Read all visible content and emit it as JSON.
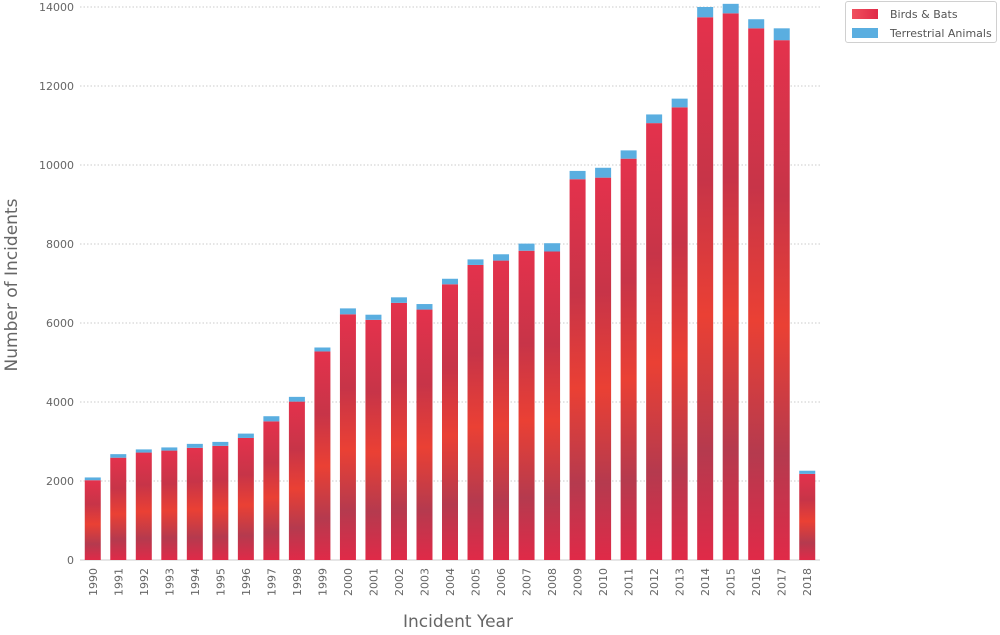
{
  "chart_data": {
    "type": "bar",
    "stacked": true,
    "xlabel": "Incident Year",
    "ylabel": "Number of Incidents",
    "ylim": [
      0,
      14000
    ],
    "yticks": [
      0,
      2000,
      4000,
      6000,
      8000,
      10000,
      12000,
      14000
    ],
    "grid": true,
    "legend_position": "top-right",
    "categories": [
      "1990",
      "1991",
      "1992",
      "1993",
      "1994",
      "1995",
      "1996",
      "1997",
      "1998",
      "1999",
      "2000",
      "2001",
      "2002",
      "2003",
      "2004",
      "2005",
      "2006",
      "2007",
      "2008",
      "2009",
      "2010",
      "2011",
      "2012",
      "2013",
      "2014",
      "2015",
      "2016",
      "2017",
      "2018"
    ],
    "series": [
      {
        "name": "Birds & Bats",
        "color": "#e8304a",
        "values": [
          2020,
          2590,
          2720,
          2770,
          2840,
          2890,
          3090,
          3510,
          4010,
          5280,
          6220,
          6080,
          6510,
          6340,
          6980,
          7470,
          7580,
          7830,
          7810,
          9640,
          9680,
          10160,
          11060,
          11460,
          13740,
          13840,
          13460,
          13160,
          2180
        ]
      },
      {
        "name": "Terrestrial Animals",
        "color": "#5aaee0",
        "values": [
          70,
          90,
          80,
          80,
          100,
          100,
          110,
          130,
          120,
          100,
          150,
          130,
          140,
          140,
          140,
          140,
          160,
          180,
          210,
          210,
          250,
          210,
          220,
          220,
          260,
          240,
          230,
          300,
          80
        ]
      }
    ]
  }
}
